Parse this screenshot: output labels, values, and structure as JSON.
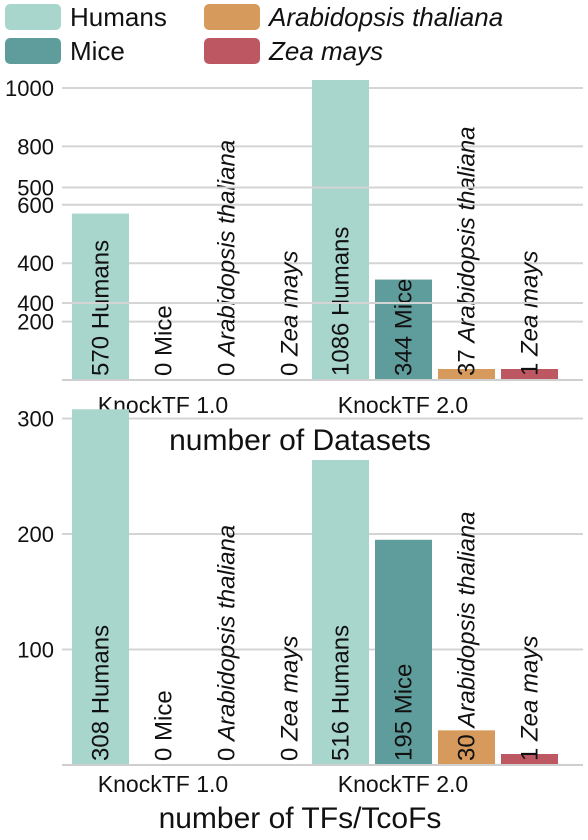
{
  "legend": {
    "placement": "top",
    "items": [
      {
        "label": "Humans",
        "color": "#a8d5cc",
        "italic": false
      },
      {
        "label": "Mice",
        "color": "#5f9d9c",
        "italic": false
      },
      {
        "label": "Arabidopsis thaliana",
        "color": "#d59a5c",
        "italic": true
      },
      {
        "label": "Zea mays",
        "color": "#bd5863",
        "italic": true
      }
    ]
  },
  "chart_data": [
    {
      "type": "bar",
      "title": "",
      "xlabel": "number of Datasets",
      "ylabel": "",
      "categories": [
        "KnockTF 1.0",
        "KnockTF 2.0"
      ],
      "ylim": [
        0,
        1000
      ],
      "yticks": [
        "200",
        "400",
        "600",
        "800",
        "1000"
      ],
      "grid": true,
      "series": [
        {
          "name": "Humans",
          "values": [
            570,
            1086
          ],
          "labels": [
            "570 Humans",
            "1086 Humans"
          ]
        },
        {
          "name": "Mice",
          "values": [
            0,
            344
          ],
          "labels": [
            "0 Mice",
            "344 Mice"
          ]
        },
        {
          "name": "Arabidopsis thaliana",
          "values": [
            0,
            37
          ],
          "labels": [
            "0 Arabidopsis thaliana",
            "37 Arabidopsis thaliana"
          ]
        },
        {
          "name": "Zea mays",
          "values": [
            0,
            1
          ],
          "labels": [
            "0 Zea mays",
            "1 Zea mays"
          ]
        }
      ]
    },
    {
      "type": "bar",
      "title": "",
      "xlabel": "number of TFs/TcoFs",
      "ylabel": "",
      "categories": [
        "KnockTF 1.0",
        "KnockTF 2.0"
      ],
      "ylim": [
        0,
        500
      ],
      "yticks": [
        "100",
        "200",
        "300",
        "400",
        "500"
      ],
      "grid": true,
      "series": [
        {
          "name": "Humans",
          "values": [
            308,
            516
          ],
          "labels": [
            "308 Humans",
            "516 Humans"
          ]
        },
        {
          "name": "Mice",
          "values": [
            0,
            195
          ],
          "labels": [
            "0 Mice",
            "195 Mice"
          ]
        },
        {
          "name": "Arabidopsis thaliana",
          "values": [
            0,
            30
          ],
          "labels": [
            "0 Arabidopsis thaliana",
            "30 Arabidopsis thaliana"
          ]
        },
        {
          "name": "Zea mays",
          "values": [
            0,
            1
          ],
          "labels": [
            "0 Zea mays",
            "1 Zea mays"
          ]
        }
      ]
    }
  ]
}
